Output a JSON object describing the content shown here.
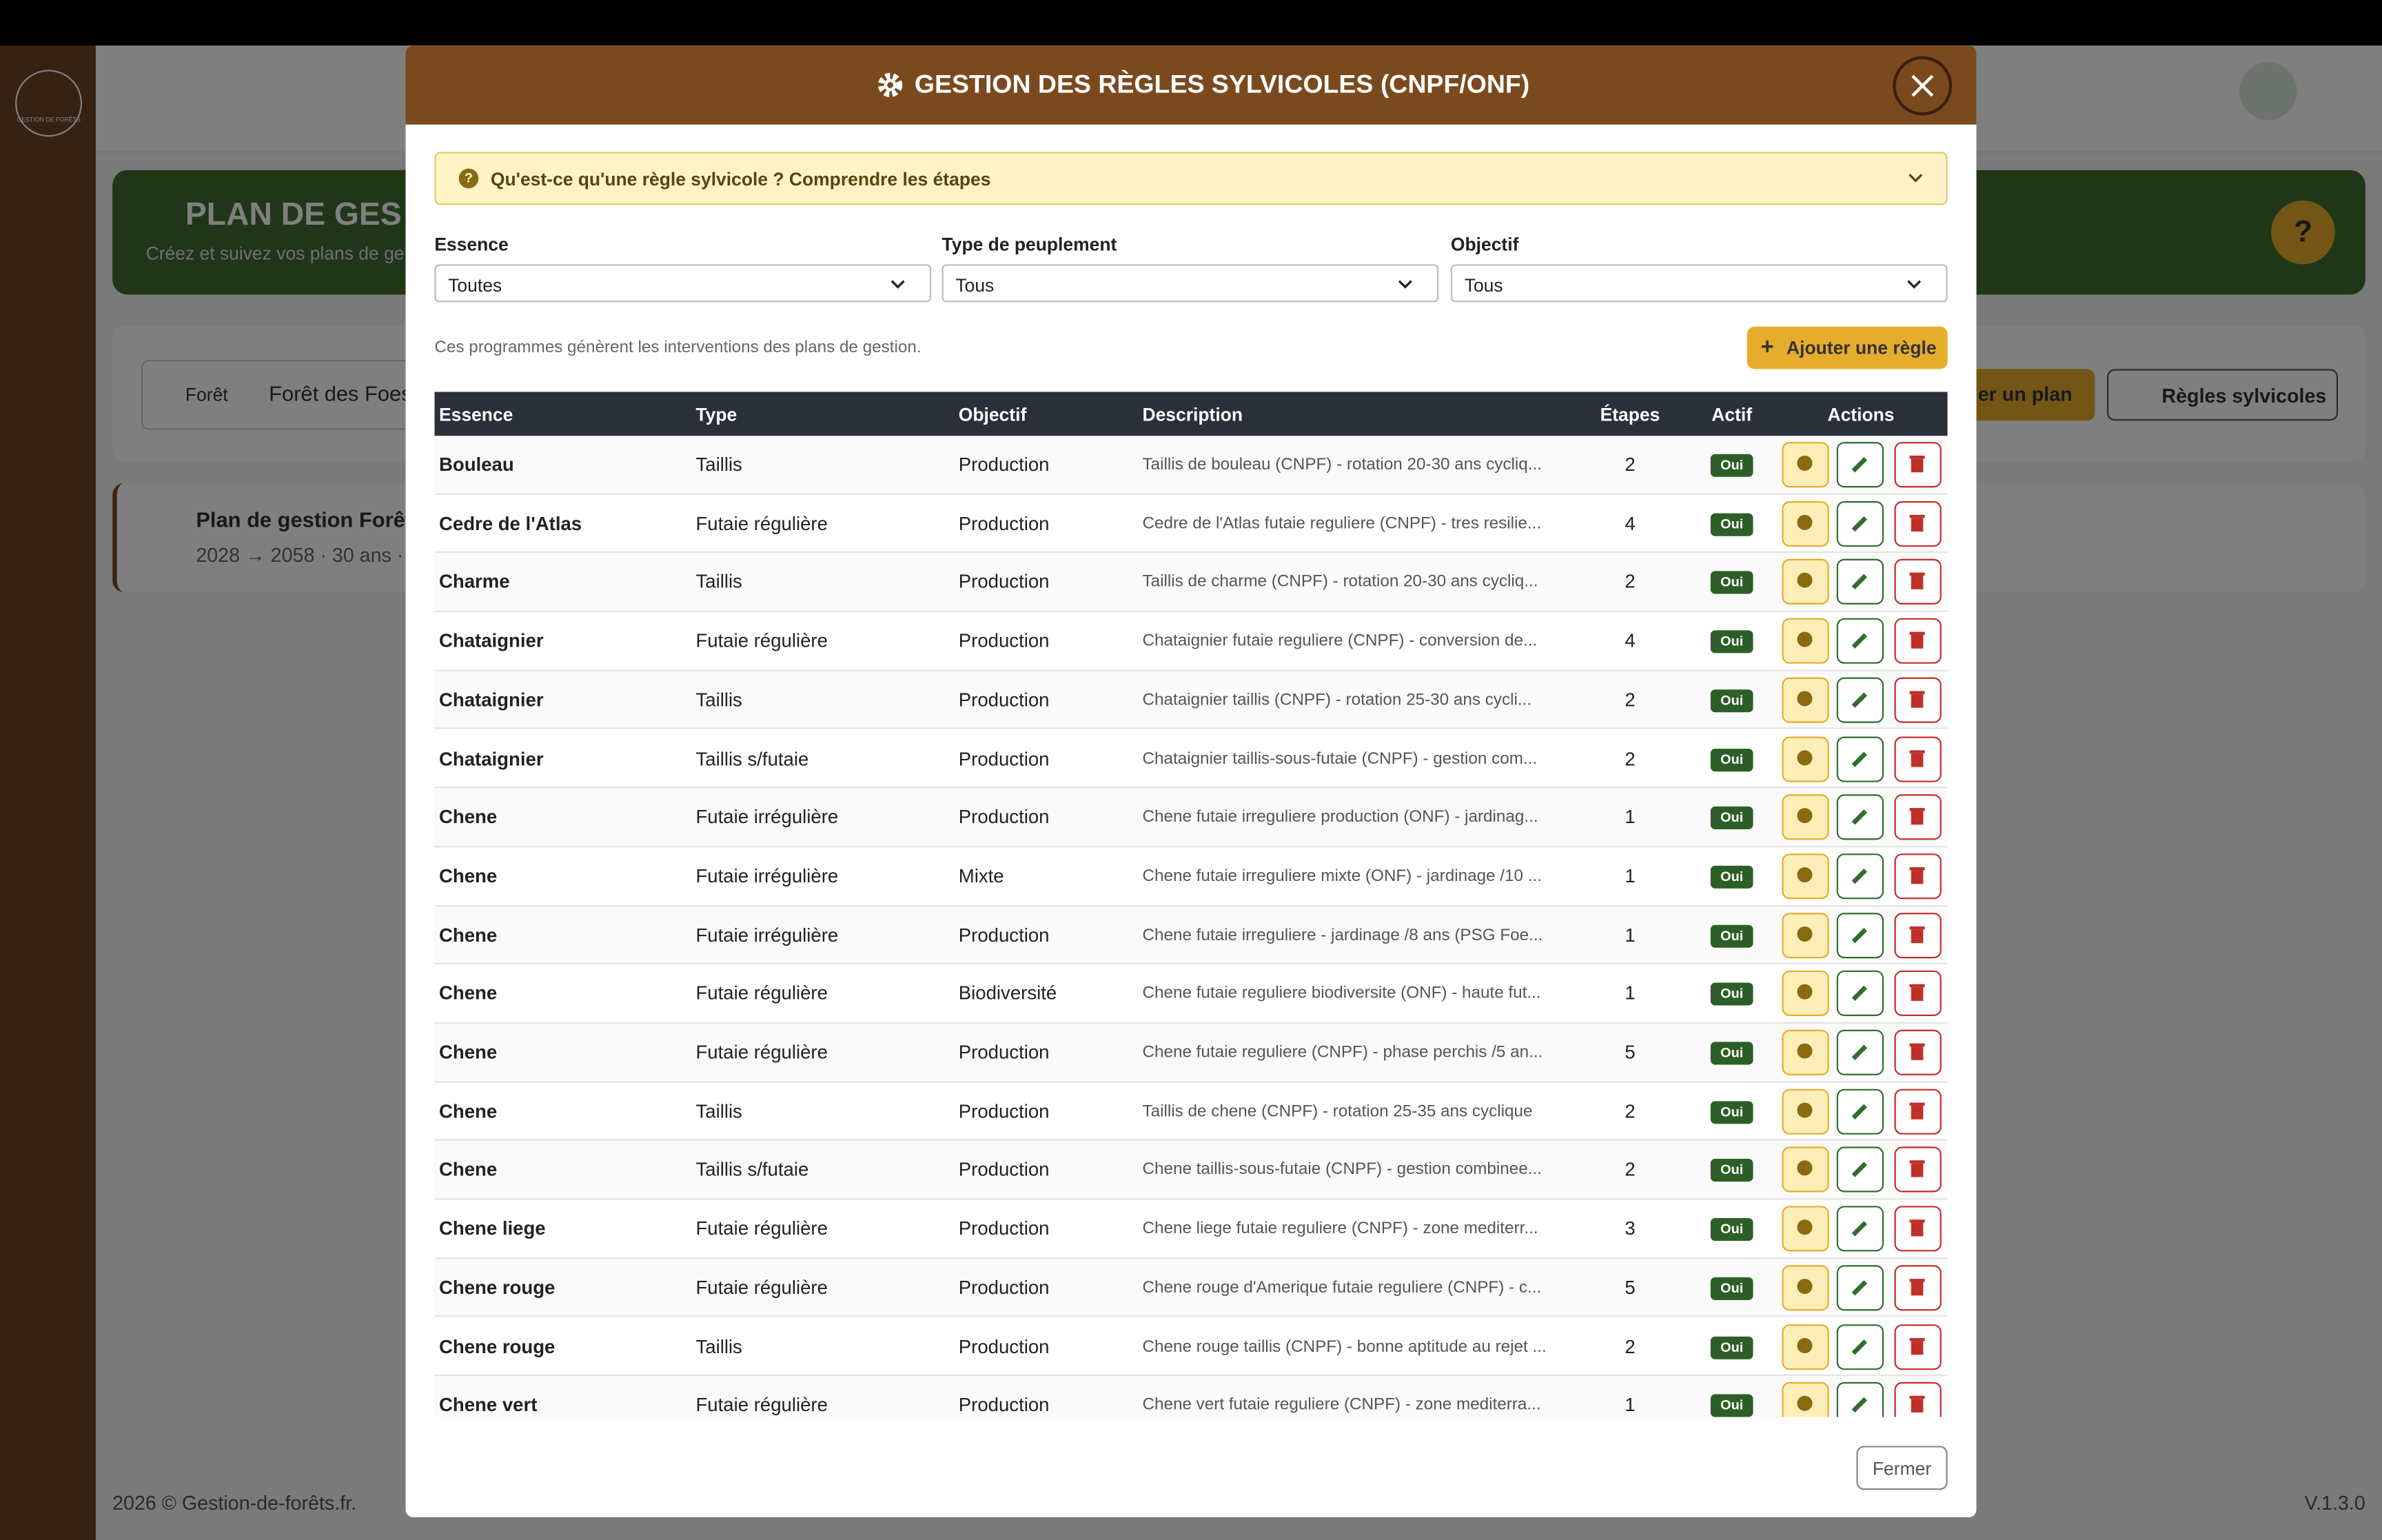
{
  "background": {
    "logo": "GESTION DE FORÊTS",
    "banner_title": "PLAN DE GES",
    "banner_subtitle": "Créez et suivez vos plans de ge",
    "help": "?",
    "forest_label": "Forêt",
    "forest_value": "Forêt des Foes",
    "create_plan": "er un plan",
    "rules_button": "Règles sylvicoles",
    "plan_title": "Plan de gestion Forêt",
    "plan_meta": "2028 → 2058 · 30 ans ·",
    "footer": "2026 © Gestion-de-forêts.fr.",
    "version": "V.1.3.0"
  },
  "modal": {
    "title": "GESTION DES RÈGLES SYLVICOLES (CNPF/ONF)",
    "info": "Qu'est-ce qu'une règle sylvicole ? Comprendre les étapes",
    "filters": [
      {
        "label": "Essence",
        "value": "Toutes"
      },
      {
        "label": "Type de peuplement",
        "value": "Tous"
      },
      {
        "label": "Objectif",
        "value": "Tous"
      }
    ],
    "note": "Ces programmes génèrent les interventions des plans de gestion.",
    "add_button": "Ajouter une règle",
    "table": {
      "headers": [
        "Essence",
        "Type",
        "Objectif",
        "Description",
        "Étapes",
        "Actif",
        "Actions"
      ],
      "rows": [
        [
          "Bouleau",
          "Taillis",
          "Production",
          "Taillis de bouleau (CNPF) - rotation 20-30 ans cycliq...",
          "2",
          "Oui"
        ],
        [
          "Cedre de l'Atlas",
          "Futaie régulière",
          "Production",
          "Cedre de l'Atlas futaie reguliere (CNPF) - tres resilie...",
          "4",
          "Oui"
        ],
        [
          "Charme",
          "Taillis",
          "Production",
          "Taillis de charme (CNPF) - rotation 20-30 ans cycliq...",
          "2",
          "Oui"
        ],
        [
          "Chataignier",
          "Futaie régulière",
          "Production",
          "Chataignier futaie reguliere (CNPF) - conversion de...",
          "4",
          "Oui"
        ],
        [
          "Chataignier",
          "Taillis",
          "Production",
          "Chataignier taillis (CNPF) - rotation 25-30 ans cycli...",
          "2",
          "Oui"
        ],
        [
          "Chataignier",
          "Taillis s/futaie",
          "Production",
          "Chataignier taillis-sous-futaie (CNPF) - gestion com...",
          "2",
          "Oui"
        ],
        [
          "Chene",
          "Futaie irrégulière",
          "Production",
          "Chene futaie irreguliere production (ONF) - jardinag...",
          "1",
          "Oui"
        ],
        [
          "Chene",
          "Futaie irrégulière",
          "Mixte",
          "Chene futaie irreguliere mixte (ONF) - jardinage /10 ...",
          "1",
          "Oui"
        ],
        [
          "Chene",
          "Futaie irrégulière",
          "Production",
          "Chene futaie irreguliere - jardinage /8 ans (PSG Foe...",
          "1",
          "Oui"
        ],
        [
          "Chene",
          "Futaie régulière",
          "Biodiversité",
          "Chene futaie reguliere biodiversite (ONF) - haute fut...",
          "1",
          "Oui"
        ],
        [
          "Chene",
          "Futaie régulière",
          "Production",
          "Chene futaie reguliere (CNPF) - phase perchis /5 an...",
          "5",
          "Oui"
        ],
        [
          "Chene",
          "Taillis",
          "Production",
          "Taillis de chene (CNPF) - rotation 25-35 ans cyclique",
          "2",
          "Oui"
        ],
        [
          "Chene",
          "Taillis s/futaie",
          "Production",
          "Chene taillis-sous-futaie (CNPF) - gestion combinee...",
          "2",
          "Oui"
        ],
        [
          "Chene liege",
          "Futaie régulière",
          "Production",
          "Chene liege futaie reguliere (CNPF) - zone mediterr...",
          "3",
          "Oui"
        ],
        [
          "Chene rouge",
          "Futaie régulière",
          "Production",
          "Chene rouge d'Amerique futaie reguliere (CNPF) - c...",
          "5",
          "Oui"
        ],
        [
          "Chene rouge",
          "Taillis",
          "Production",
          "Chene rouge taillis (CNPF) - bonne aptitude au rejet ...",
          "2",
          "Oui"
        ],
        [
          "Chene vert",
          "Futaie régulière",
          "Production",
          "Chene vert futaie reguliere (CNPF) - zone mediterra...",
          "1",
          "Oui"
        ]
      ]
    },
    "close_button": "Fermer"
  }
}
